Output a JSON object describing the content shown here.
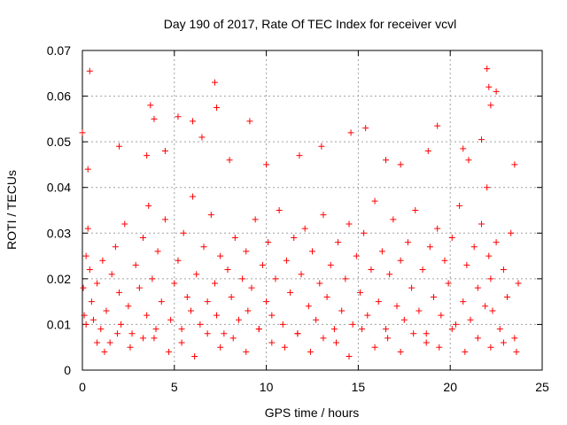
{
  "chart_data": {
    "type": "scatter",
    "title": "Day 190 of 2017, Rate Of TEC Index for receiver vcvl",
    "xlabel": "GPS time / hours",
    "ylabel": "ROTI / TECUs",
    "xlim": [
      0,
      25
    ],
    "ylim": [
      0,
      0.07
    ],
    "grid": true,
    "x_ticks": [
      "0",
      "5",
      "10",
      "15",
      "20",
      "25"
    ],
    "y_ticks": [
      "0",
      "0.01",
      "0.02",
      "0.03",
      "0.04",
      "0.05",
      "0.06",
      "0.07"
    ],
    "marker": "+",
    "series": [
      {
        "name": "ROTI",
        "color": "#ff0000",
        "x": [
          0.05,
          0.1,
          0.2,
          0.3,
          0.4,
          0.5,
          0.6,
          0.8,
          1.0,
          1.1,
          1.3,
          1.5,
          1.6,
          1.8,
          2.0,
          2.1,
          2.3,
          2.5,
          2.7,
          2.9,
          3.1,
          3.3,
          3.5,
          3.6,
          3.8,
          3.9,
          4.1,
          4.3,
          4.5,
          4.8,
          5.0,
          5.2,
          5.4,
          5.5,
          5.7,
          5.9,
          6.0,
          6.2,
          6.4,
          6.6,
          6.8,
          7.0,
          7.2,
          7.3,
          7.5,
          7.7,
          7.9,
          8.1,
          8.3,
          8.5,
          8.7,
          8.9,
          9.0,
          9.2,
          9.4,
          9.6,
          9.8,
          10.0,
          10.1,
          10.3,
          10.5,
          10.7,
          10.9,
          11.1,
          11.3,
          11.5,
          11.7,
          11.9,
          12.1,
          12.3,
          12.5,
          12.7,
          12.9,
          13.1,
          13.3,
          13.5,
          13.7,
          13.9,
          14.1,
          14.3,
          14.5,
          14.7,
          14.9,
          15.1,
          15.3,
          15.5,
          15.7,
          15.9,
          16.1,
          16.3,
          16.5,
          16.7,
          16.9,
          17.1,
          17.3,
          17.5,
          17.7,
          17.9,
          18.1,
          18.3,
          18.5,
          18.7,
          18.9,
          19.1,
          19.3,
          19.5,
          19.7,
          19.9,
          20.1,
          20.3,
          20.5,
          20.7,
          20.9,
          21.1,
          21.3,
          21.5,
          21.7,
          21.9,
          22.0,
          22.1,
          22.2,
          22.3,
          22.5,
          22.7,
          22.9,
          23.1,
          23.3,
          23.5,
          23.7,
          0.4,
          3.7,
          3.9,
          7.2,
          7.3,
          22.0,
          22.1,
          22.2,
          22.5,
          0.0,
          5.2,
          6.0,
          9.1,
          14.6,
          15.4,
          19.3,
          20.7,
          21.7,
          0.3,
          2.0,
          3.5,
          4.5,
          6.5,
          8.0,
          10.0,
          11.8,
          13.0,
          16.5,
          17.3,
          18.8,
          21.0,
          23.5,
          0.2,
          0.8,
          1.2,
          1.9,
          2.6,
          3.3,
          4.0,
          4.7,
          5.4,
          6.1,
          6.8,
          7.5,
          8.2,
          8.9,
          9.6,
          10.3,
          11.0,
          11.7,
          12.4,
          13.1,
          13.8,
          14.5,
          15.2,
          15.9,
          16.6,
          17.3,
          18.0,
          18.7,
          19.4,
          20.1,
          20.8,
          21.5,
          22.2,
          22.9,
          23.6
        ],
        "y": [
          0.018,
          0.012,
          0.025,
          0.031,
          0.022,
          0.015,
          0.011,
          0.019,
          0.009,
          0.024,
          0.013,
          0.006,
          0.021,
          0.027,
          0.017,
          0.01,
          0.032,
          0.014,
          0.008,
          0.023,
          0.018,
          0.029,
          0.012,
          0.036,
          0.02,
          0.007,
          0.026,
          0.015,
          0.033,
          0.011,
          0.019,
          0.024,
          0.009,
          0.03,
          0.016,
          0.013,
          0.038,
          0.021,
          0.01,
          0.027,
          0.015,
          0.034,
          0.019,
          0.012,
          0.025,
          0.008,
          0.022,
          0.016,
          0.029,
          0.011,
          0.02,
          0.026,
          0.013,
          0.018,
          0.033,
          0.009,
          0.023,
          0.015,
          0.028,
          0.012,
          0.02,
          0.035,
          0.01,
          0.024,
          0.017,
          0.029,
          0.008,
          0.021,
          0.031,
          0.014,
          0.026,
          0.011,
          0.019,
          0.034,
          0.016,
          0.023,
          0.009,
          0.028,
          0.013,
          0.02,
          0.032,
          0.01,
          0.025,
          0.017,
          0.03,
          0.012,
          0.022,
          0.037,
          0.015,
          0.026,
          0.009,
          0.021,
          0.033,
          0.014,
          0.024,
          0.011,
          0.028,
          0.018,
          0.035,
          0.013,
          0.022,
          0.008,
          0.027,
          0.016,
          0.031,
          0.012,
          0.024,
          0.019,
          0.029,
          0.01,
          0.036,
          0.015,
          0.023,
          0.011,
          0.027,
          0.018,
          0.032,
          0.014,
          0.04,
          0.025,
          0.02,
          0.013,
          0.028,
          0.009,
          0.022,
          0.016,
          0.03,
          0.007,
          0.019,
          0.0655,
          0.058,
          0.055,
          0.063,
          0.0575,
          0.066,
          0.062,
          0.058,
          0.061,
          0.052,
          0.0555,
          0.0545,
          0.0545,
          0.052,
          0.053,
          0.0535,
          0.0485,
          0.0505,
          0.044,
          0.049,
          0.047,
          0.048,
          0.051,
          0.046,
          0.045,
          0.047,
          0.049,
          0.046,
          0.045,
          0.048,
          0.046,
          0.045,
          0.01,
          0.006,
          0.004,
          0.008,
          0.005,
          0.007,
          0.009,
          0.004,
          0.006,
          0.003,
          0.008,
          0.005,
          0.007,
          0.004,
          0.009,
          0.006,
          0.005,
          0.008,
          0.004,
          0.007,
          0.006,
          0.003,
          0.009,
          0.005,
          0.007,
          0.004,
          0.008,
          0.006,
          0.005,
          0.009,
          0.004,
          0.007,
          0.005,
          0.006,
          0.004
        ]
      }
    ]
  }
}
